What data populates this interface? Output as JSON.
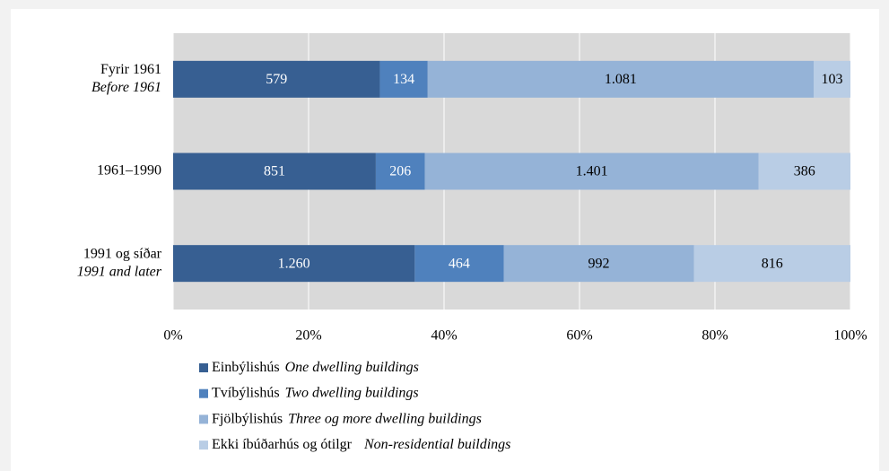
{
  "chart_data": {
    "type": "bar",
    "orientation": "horizontal",
    "stack": "percent",
    "categories": [
      "Fyrir 1961",
      "1961–1990",
      "1991 og síðar"
    ],
    "categories_en": [
      "Before 1961",
      null,
      "1991 and later"
    ],
    "series": [
      {
        "name": "Einbýlishús",
        "name_en": "One dwelling buildings",
        "color": "#375f92",
        "label_color": "#ffffff",
        "values": [
          579,
          851,
          1260
        ],
        "value_labels": [
          "579",
          "851",
          "1.260"
        ]
      },
      {
        "name": "Tvíbýlishús",
        "name_en": "Two dwelling buildings",
        "color": "#4f81bd",
        "label_color": "#ffffff",
        "values": [
          134,
          206,
          464
        ],
        "value_labels": [
          "134",
          "206",
          "464"
        ]
      },
      {
        "name": "Fjölbýlishús",
        "name_en": "Three og more dwelling buildings",
        "color": "#95b3d7",
        "label_color": "#000000",
        "values": [
          1081,
          1401,
          992
        ],
        "value_labels": [
          "1.081",
          "1.401",
          "992"
        ]
      },
      {
        "name": "Ekki íbúðarhús og ótilgr",
        "name_en": "Non-residential buildings",
        "color": "#b9cde5",
        "label_color": "#000000",
        "values": [
          103,
          386,
          816
        ],
        "value_labels": [
          "103",
          "386",
          "816"
        ]
      }
    ],
    "xlim": [
      0,
      100
    ],
    "xticks": [
      {
        "value": 0,
        "label": "0%"
      },
      {
        "value": 20,
        "label": "20%"
      },
      {
        "value": 40,
        "label": "40%"
      },
      {
        "value": 60,
        "label": "60%"
      },
      {
        "value": 80,
        "label": "80%"
      },
      {
        "value": 100,
        "label": "100%"
      }
    ],
    "grid": true,
    "legend": "bottom"
  }
}
